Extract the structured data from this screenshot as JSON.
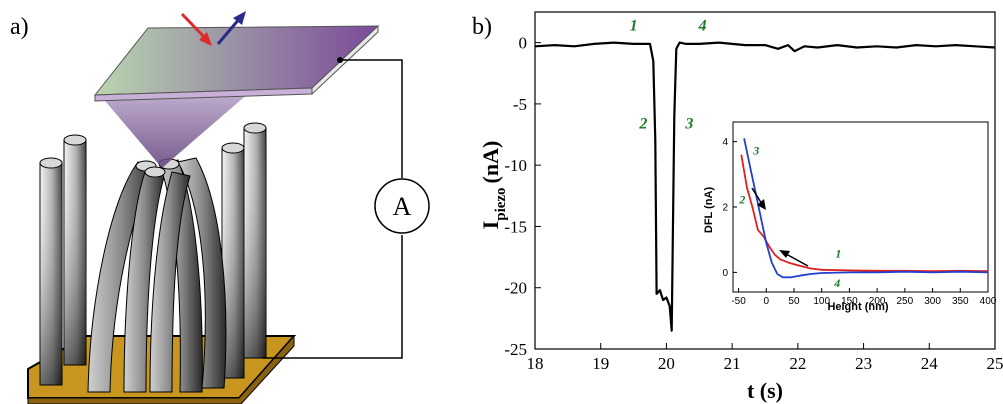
{
  "panel_a": {
    "label": "a)",
    "ammeter_symbol": "A",
    "colors": {
      "substrate": "#c8961e",
      "cantilever_start": "#b9d6b0",
      "cantilever_end": "#7a4a9a",
      "laser_in": "#e02a2a",
      "laser_out": "#2a2a8a"
    }
  },
  "chart_data": [
    {
      "label": "b)",
      "type": "line",
      "xlabel": "t (s)",
      "ylabel_main": "I",
      "ylabel_sub": "piezo",
      "ylabel_unit": "(nA)",
      "xlim": [
        18,
        25
      ],
      "ylim": [
        -25,
        2.5
      ],
      "xticks": [
        "18",
        "19",
        "20",
        "21",
        "22",
        "23",
        "24",
        "25"
      ],
      "yticks": [
        "0",
        "-5",
        "-10",
        "-15",
        "-20",
        "-25"
      ],
      "series": [
        {
          "color": "#000000",
          "x": [
            18.0,
            18.3,
            18.6,
            18.9,
            19.2,
            19.5,
            19.75,
            19.8,
            19.83,
            19.85,
            19.9,
            19.95,
            20.0,
            20.05,
            20.08,
            20.12,
            20.15,
            20.2,
            20.3,
            20.5,
            20.8,
            21.0,
            21.2,
            21.5,
            21.7,
            21.85,
            21.95,
            22.1,
            22.3,
            22.6,
            22.9,
            23.2,
            23.5,
            23.8,
            24.1,
            24.4,
            24.7,
            25.0
          ],
          "y": [
            -0.3,
            -0.2,
            -0.3,
            -0.1,
            0.0,
            -0.1,
            -0.1,
            -1.5,
            -8.0,
            -20.5,
            -20.2,
            -21.0,
            -20.8,
            -21.5,
            -23.5,
            -6.0,
            -0.5,
            0.0,
            -0.1,
            -0.1,
            0.0,
            -0.1,
            -0.2,
            -0.2,
            -0.5,
            -0.2,
            -0.7,
            -0.3,
            -0.4,
            -0.2,
            -0.4,
            -0.3,
            -0.4,
            -0.2,
            -0.3,
            -0.2,
            -0.3,
            -0.4
          ]
        }
      ],
      "annotations": [
        {
          "text": "1",
          "x": 19.5,
          "y": 1.0
        },
        {
          "text": "2",
          "x": 19.65,
          "y": -7.0
        },
        {
          "text": "3",
          "x": 20.35,
          "y": -7.0
        },
        {
          "text": "4",
          "x": 20.55,
          "y": 1.0
        }
      ]
    },
    {
      "type": "line",
      "xlabel": "Height (nm)",
      "ylabel": "DFL (nA)",
      "xlim": [
        -60,
        400
      ],
      "ylim": [
        -0.6,
        4.6
      ],
      "xticks": [
        "-50",
        "0",
        "50",
        "100",
        "150",
        "200",
        "250",
        "300",
        "350",
        "400"
      ],
      "yticks": [
        "0",
        "2",
        "4"
      ],
      "series": [
        {
          "color": "#e02020",
          "x": [
            -45,
            -35,
            -25,
            -15,
            -5,
            5,
            15,
            25,
            40,
            60,
            80,
            100,
            150,
            200,
            250,
            300,
            350,
            400
          ],
          "y": [
            3.6,
            2.6,
            2.0,
            1.3,
            1.1,
            0.8,
            0.55,
            0.4,
            0.3,
            0.2,
            0.12,
            0.08,
            0.06,
            0.05,
            0.05,
            0.04,
            0.05,
            0.04
          ]
        },
        {
          "color": "#2040d0",
          "x": [
            -40,
            -30,
            -20,
            -10,
            0,
            10,
            20,
            30,
            45,
            60,
            80,
            100,
            150,
            200,
            250,
            300,
            350,
            400
          ],
          "y": [
            4.1,
            3.3,
            2.5,
            1.7,
            0.9,
            0.3,
            -0.05,
            -0.15,
            -0.15,
            -0.1,
            -0.05,
            -0.02,
            0.0,
            0.0,
            0.02,
            0.0,
            0.02,
            0.0
          ]
        }
      ],
      "annotations": [
        {
          "text": "1",
          "x": 130,
          "y": 0.45
        },
        {
          "text": "2",
          "x": -43,
          "y": 2.1
        },
        {
          "text": "3",
          "x": -18,
          "y": 3.6
        },
        {
          "text": "4",
          "x": 128,
          "y": -0.45
        }
      ]
    }
  ]
}
